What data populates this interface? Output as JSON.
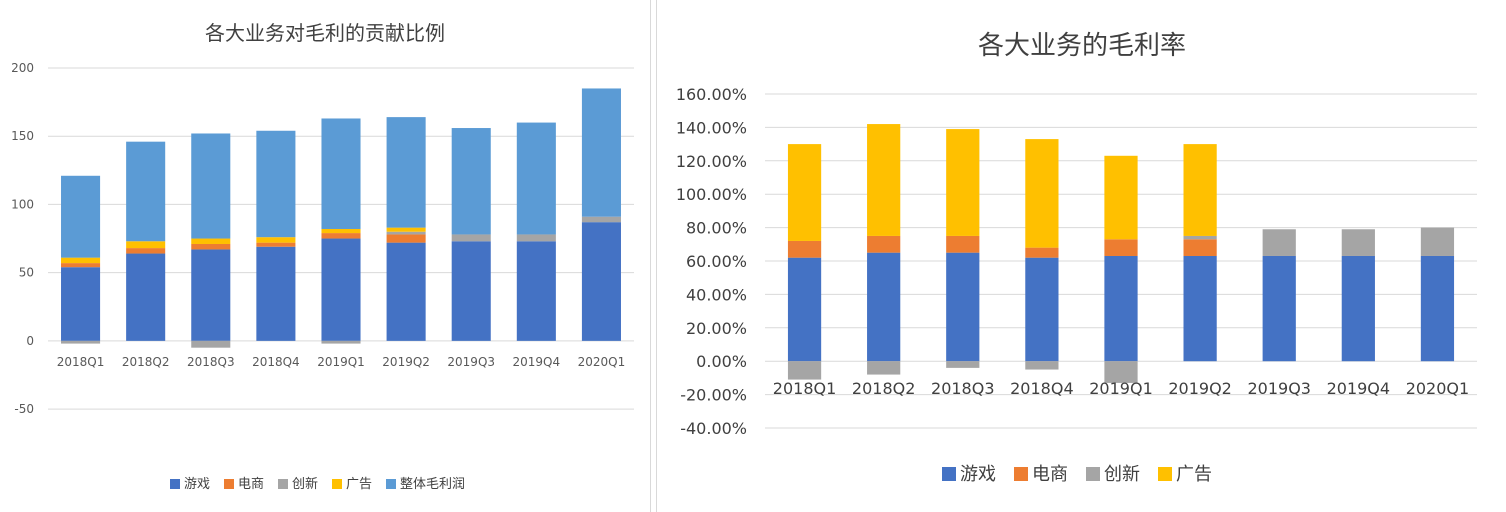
{
  "colors": {
    "游戏": "#4472C4",
    "电商": "#ED7D31",
    "创新": "#A5A5A5",
    "广告": "#FFC000",
    "整体毛利润": "#5B9BD5"
  },
  "chart_data": [
    {
      "type": "bar",
      "stacked": true,
      "title": "各大业务对毛利的贡献比例",
      "categories": [
        "2018Q1",
        "2018Q2",
        "2018Q3",
        "2018Q4",
        "2019Q1",
        "2019Q2",
        "2019Q3",
        "2019Q4",
        "2020Q1"
      ],
      "ylim": [
        -80,
        200
      ],
      "yticks": [
        "200",
        "150",
        "100",
        "50",
        "0",
        "-50"
      ],
      "ytick_values": [
        200,
        150,
        100,
        50,
        0,
        -50
      ],
      "legend_position": "bottom",
      "grid": true,
      "series": [
        {
          "name": "游戏",
          "values": [
            54,
            64,
            67,
            69,
            75,
            72,
            73,
            73,
            87
          ]
        },
        {
          "name": "电商",
          "values": [
            3,
            4,
            4,
            3,
            4,
            6,
            0,
            0,
            0
          ]
        },
        {
          "name": "创新",
          "values": [
            -2,
            0,
            -5,
            0,
            -2,
            2,
            5,
            5,
            4
          ]
        },
        {
          "name": "广告",
          "values": [
            4,
            5,
            4,
            4,
            3,
            3,
            0,
            0,
            0
          ]
        },
        {
          "name": "整体毛利润",
          "values": [
            60,
            73,
            77,
            78,
            81,
            81,
            78,
            82,
            94
          ]
        }
      ]
    },
    {
      "type": "bar",
      "stacked": true,
      "title": "各大业务的毛利率",
      "categories": [
        "2018Q1",
        "2018Q2",
        "2018Q3",
        "2018Q4",
        "2019Q1",
        "2019Q2",
        "2019Q3",
        "2019Q4",
        "2020Q1"
      ],
      "ylim": [
        -0.4,
        1.6
      ],
      "yticks": [
        "160.00%",
        "140.00%",
        "120.00%",
        "100.00%",
        "80.00%",
        "60.00%",
        "40.00%",
        "20.00%",
        "0.00%",
        "-20.00%",
        "-40.00%"
      ],
      "ytick_values": [
        1.6,
        1.4,
        1.2,
        1.0,
        0.8,
        0.6,
        0.4,
        0.2,
        0,
        -0.2,
        -0.4
      ],
      "legend_position": "bottom",
      "grid": true,
      "series": [
        {
          "name": "游戏",
          "values": [
            0.62,
            0.65,
            0.65,
            0.62,
            0.63,
            0.63,
            0.63,
            0.63,
            0.63
          ]
        },
        {
          "name": "电商",
          "values": [
            0.1,
            0.1,
            0.1,
            0.06,
            0.1,
            0.1,
            0,
            0,
            0
          ]
        },
        {
          "name": "创新",
          "values": [
            -0.11,
            -0.08,
            -0.04,
            -0.05,
            -0.13,
            0.02,
            0.16,
            0.16,
            0.17
          ]
        },
        {
          "name": "广告",
          "values": [
            0.58,
            0.67,
            0.64,
            0.65,
            0.5,
            0.55,
            0,
            0,
            0
          ]
        }
      ]
    }
  ]
}
